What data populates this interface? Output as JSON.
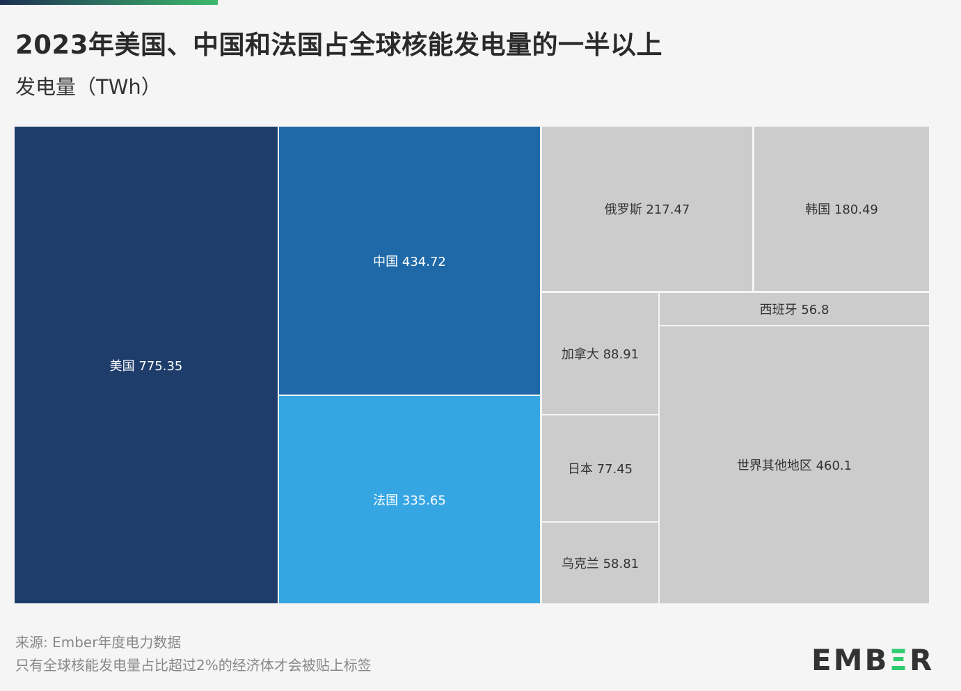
{
  "chart_data": {
    "type": "treemap",
    "title": "2023年美国、中国和法国占全球核能发电量的一半以上",
    "subtitle": "发电量（TWh）",
    "unit": "TWh",
    "items": [
      {
        "name": "美国",
        "value": 775.35,
        "label": "美国 775.35",
        "color": "#1f3d6b"
      },
      {
        "name": "中国",
        "value": 434.72,
        "label": "中国 434.72",
        "color": "#1f69a8"
      },
      {
        "name": "法国",
        "value": 335.65,
        "label": "法国 335.65",
        "color": "#36a6e3"
      },
      {
        "name": "俄罗斯",
        "value": 217.47,
        "label": "俄罗斯 217.47",
        "color": "#cccccc"
      },
      {
        "name": "韩国",
        "value": 180.49,
        "label": "韩国 180.49",
        "color": "#cccccc"
      },
      {
        "name": "加拿大",
        "value": 88.91,
        "label": "加拿大 88.91",
        "color": "#cccccc"
      },
      {
        "name": "日本",
        "value": 77.45,
        "label": "日本 77.45",
        "color": "#cccccc"
      },
      {
        "name": "乌克兰",
        "value": 58.81,
        "label": "乌克兰 58.81",
        "color": "#cccccc"
      },
      {
        "name": "西班牙",
        "value": 56.8,
        "label": "西班牙 56.8",
        "color": "#cccccc"
      },
      {
        "name": "世界其他地区",
        "value": 460.1,
        "label": "世界其他地区 460.1",
        "color": "#cccccc"
      }
    ]
  },
  "footer": {
    "source": "来源: Ember年度电力数据",
    "note": "只有全球核能发电量占比超过2%的经济体才会被贴上标签"
  },
  "logo": {
    "pre": "EMB",
    "mid": "Ξ",
    "post": "R"
  }
}
